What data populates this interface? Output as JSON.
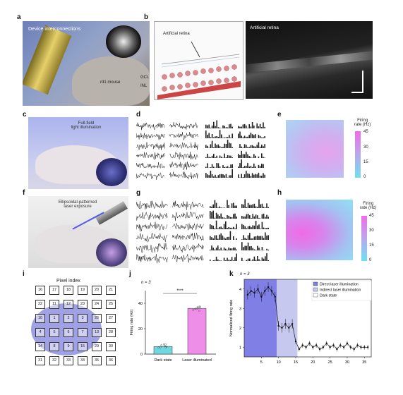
{
  "panels": {
    "a": {
      "label": "a",
      "device_text": "Device interconnections",
      "mouse_text": "rd1 mouse"
    },
    "b": {
      "label": "b",
      "retina_text": "Artificial retina",
      "retina_text2": "Artificial retina",
      "gcl": "GCL",
      "inl": "INL"
    },
    "c": {
      "label": "c",
      "title_line1": "Full-field",
      "title_line2": "light illumination"
    },
    "d": {
      "label": "d"
    },
    "e": {
      "label": "e",
      "cbar_title_1": "Firing",
      "cbar_title_2": "rate (Hz)",
      "ticks": [
        "45",
        "30",
        "15",
        "0"
      ]
    },
    "f": {
      "label": "f",
      "title_line1": "Ellipsoidal-patterned",
      "title_line2": "laser exposure"
    },
    "g": {
      "label": "g"
    },
    "h": {
      "label": "h",
      "cbar_title_1": "Firing",
      "cbar_title_2": "rate (Hz)",
      "ticks": [
        "45",
        "30",
        "15",
        "0"
      ]
    },
    "i": {
      "label": "i",
      "title": "Pixel index",
      "pixels": [
        [
          "16",
          "17",
          "18",
          "19",
          "20",
          "21"
        ],
        [
          "22",
          "11",
          "12",
          "23",
          "24",
          "25"
        ],
        [
          "10",
          "1",
          "2",
          "3",
          "26",
          "27"
        ],
        [
          "4",
          "5",
          "6",
          "7",
          "13",
          "28"
        ],
        [
          "14",
          "8",
          "9",
          "15",
          "29",
          "30"
        ],
        [
          "31",
          "32",
          "33",
          "34",
          "35",
          "36"
        ]
      ]
    },
    "j": {
      "label": "j",
      "n_text": "n = 3",
      "sig": "****",
      "ylabel": "Firing rate (Hz)",
      "yticks": [
        "0",
        "20",
        "40"
      ],
      "categories": [
        "Dark state",
        "Laser illuminated"
      ]
    },
    "k": {
      "label": "k",
      "n_text": "n = 3",
      "ylabel": "Normalized firing rate",
      "yticks": [
        "1",
        "2",
        "3",
        "4"
      ],
      "xticks": [
        "5",
        "10",
        "15",
        "20",
        "25",
        "30",
        "35"
      ],
      "legend": [
        "Direct laser illumination",
        "Indirect laser illumination",
        "Dark state"
      ]
    }
  },
  "colors": {
    "blue_region": "#7f7fe6",
    "light_blue_region": "#c6c8ef",
    "bar_dark": "#6fd7df",
    "bar_laser": "#ee8ee8"
  },
  "chart_data": [
    {
      "type": "bar",
      "categories": [
        "Dark state",
        "Laser illuminated"
      ],
      "values": [
        6,
        36
      ],
      "ylabel": "Firing rate (Hz)",
      "ylim": [
        0,
        50
      ]
    },
    {
      "type": "line",
      "x": [
        1,
        2,
        3,
        4,
        5,
        6,
        7,
        8,
        9,
        10,
        11,
        12,
        13,
        14,
        15,
        16,
        17,
        18,
        19,
        20,
        21,
        22,
        23,
        24,
        25,
        26,
        27,
        28,
        29,
        30,
        31,
        32,
        33,
        34,
        35,
        36
      ],
      "y": [
        3.7,
        3.9,
        3.8,
        4.0,
        3.6,
        3.9,
        4.1,
        3.9,
        3.6,
        2.1,
        2.0,
        2.2,
        2.0,
        2.2,
        1.3,
        0.9,
        1.1,
        1.0,
        1.2,
        1.0,
        1.1,
        0.9,
        1.0,
        1.2,
        1.0,
        1.1,
        0.9,
        1.1,
        1.0,
        1.2,
        1.0,
        0.9,
        1.1,
        1.0,
        1.0,
        1.0
      ],
      "ylabel": "Normalized firing rate",
      "ylim": [
        0.5,
        4.5
      ],
      "xlim": [
        0,
        37
      ]
    }
  ]
}
